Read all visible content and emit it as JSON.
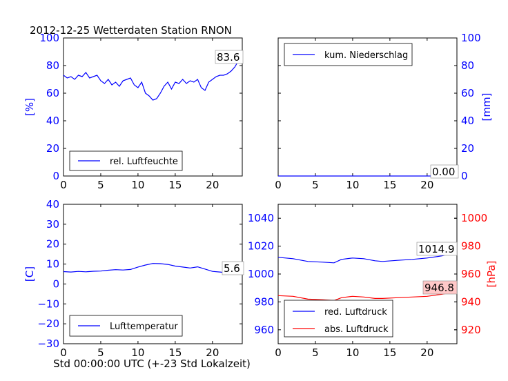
{
  "figure_title": "2012-12-25 Wetterdaten Station RNON",
  "xaxis_caption": "Std 00:00:00 UTC (+-23 Std Lokalzeit)",
  "colors": {
    "blue": "#0000ff",
    "red": "#ff0000",
    "black": "#000000",
    "label_bg_red": "#ffc8c8"
  },
  "chart_data": [
    {
      "type": "line",
      "id": "humidity",
      "xlim": [
        0,
        24
      ],
      "ylim": [
        0,
        100
      ],
      "xticks": [
        0,
        5,
        10,
        15,
        20
      ],
      "yticks": [
        0,
        20,
        40,
        60,
        80,
        100
      ],
      "ylabel": "[%]",
      "ylabel_side": "left",
      "legend_position": "lower-left",
      "series": [
        {
          "name": "rel. Luftfeuchte",
          "color": "#0000ff",
          "points": [
            [
              0,
              73
            ],
            [
              0.5,
              71
            ],
            [
              1,
              72
            ],
            [
              1.5,
              70
            ],
            [
              2,
              73
            ],
            [
              2.5,
              72
            ],
            [
              3,
              75
            ],
            [
              3.5,
              71
            ],
            [
              4,
              72
            ],
            [
              4.5,
              73
            ],
            [
              5,
              69
            ],
            [
              5.5,
              67
            ],
            [
              6,
              70
            ],
            [
              6.5,
              66
            ],
            [
              7,
              68
            ],
            [
              7.5,
              65
            ],
            [
              8,
              69
            ],
            [
              8.5,
              70
            ],
            [
              9,
              71
            ],
            [
              9.5,
              66
            ],
            [
              10,
              64
            ],
            [
              10.5,
              68
            ],
            [
              11,
              60
            ],
            [
              11.5,
              58
            ],
            [
              12,
              55
            ],
            [
              12.5,
              56
            ],
            [
              13,
              60
            ],
            [
              13.5,
              65
            ],
            [
              14,
              68
            ],
            [
              14.5,
              63
            ],
            [
              15,
              68
            ],
            [
              15.5,
              67
            ],
            [
              16,
              70
            ],
            [
              16.5,
              67
            ],
            [
              17,
              69
            ],
            [
              17.5,
              68
            ],
            [
              18,
              70
            ],
            [
              18.5,
              64
            ],
            [
              19,
              62
            ],
            [
              19.5,
              68
            ],
            [
              20,
              70
            ],
            [
              20.5,
              72
            ],
            [
              21,
              73
            ],
            [
              21.5,
              73
            ],
            [
              22,
              74
            ],
            [
              22.5,
              76
            ],
            [
              23,
              79
            ],
            [
              23.5,
              83.6
            ],
            [
              24,
              83.6
            ]
          ]
        }
      ],
      "value_label": "83.6"
    },
    {
      "type": "line",
      "id": "precipitation",
      "xlim": [
        0,
        24
      ],
      "ylim": [
        0,
        100
      ],
      "xticks": [
        0,
        5,
        10,
        15,
        20
      ],
      "yticks": [
        0,
        20,
        40,
        60,
        80,
        100
      ],
      "ylabel": "[mm]",
      "ylabel_side": "right",
      "legend_position": "upper-left",
      "series": [
        {
          "name": "kum. Niederschlag",
          "color": "#0000ff",
          "points": [
            [
              0,
              0
            ],
            [
              24,
              0
            ]
          ]
        }
      ],
      "value_label": "0.00"
    },
    {
      "type": "line",
      "id": "temperature",
      "xlim": [
        0,
        24
      ],
      "ylim": [
        -30,
        40
      ],
      "xticks": [
        0,
        5,
        10,
        15,
        20
      ],
      "yticks": [
        -30,
        -20,
        -10,
        0,
        10,
        20,
        30,
        40
      ],
      "ylabel": "[C]",
      "ylabel_side": "left",
      "legend_position": "lower-left",
      "series": [
        {
          "name": "Lufttemperatur",
          "color": "#0000ff",
          "points": [
            [
              0,
              6.2
            ],
            [
              1,
              6.0
            ],
            [
              2,
              6.3
            ],
            [
              3,
              6.1
            ],
            [
              4,
              6.4
            ],
            [
              5,
              6.5
            ],
            [
              6,
              6.9
            ],
            [
              7,
              7.2
            ],
            [
              8,
              7.0
            ],
            [
              9,
              7.3
            ],
            [
              10,
              8.5
            ],
            [
              11,
              9.5
            ],
            [
              12,
              10.3
            ],
            [
              13,
              10.2
            ],
            [
              14,
              9.8
            ],
            [
              15,
              9.0
            ],
            [
              16,
              8.5
            ],
            [
              17,
              8.0
            ],
            [
              18,
              8.6
            ],
            [
              19,
              7.5
            ],
            [
              20,
              6.3
            ],
            [
              21,
              6.0
            ],
            [
              22,
              5.6
            ],
            [
              23,
              5.5
            ],
            [
              24,
              5.6
            ]
          ]
        }
      ],
      "value_label": "5.6"
    },
    {
      "type": "line",
      "id": "pressure",
      "xlim": [
        0,
        24
      ],
      "ylim": [
        950,
        1050
      ],
      "ylim_right": [
        910,
        1010
      ],
      "xticks": [
        0,
        5,
        10,
        15,
        20
      ],
      "yticks": [
        960,
        980,
        1000,
        1020,
        1040
      ],
      "yticks_right": [
        920,
        940,
        960,
        980,
        1000
      ],
      "ylabel_right": "[hPa]",
      "legend_position": "lower-left",
      "series": [
        {
          "name": "red. Luftdruck",
          "color": "#0000ff",
          "axis": "left",
          "points": [
            [
              0,
              1012
            ],
            [
              2,
              1011
            ],
            [
              4,
              1009
            ],
            [
              6,
              1008.5
            ],
            [
              7.5,
              1008
            ],
            [
              8.5,
              1010.5
            ],
            [
              10,
              1011.5
            ],
            [
              11.5,
              1011
            ],
            [
              13,
              1009.5
            ],
            [
              14,
              1009
            ],
            [
              16,
              1009.8
            ],
            [
              18,
              1010.5
            ],
            [
              20,
              1011.5
            ],
            [
              22,
              1013
            ],
            [
              23,
              1014.5
            ],
            [
              24,
              1014.9
            ]
          ]
        },
        {
          "name": "abs. Luftdruck",
          "color": "#ff0000",
          "axis": "right",
          "points": [
            [
              0,
              944.5
            ],
            [
              2,
              944
            ],
            [
              4,
              942
            ],
            [
              6,
              941.5
            ],
            [
              7.5,
              941
            ],
            [
              8.5,
              943
            ],
            [
              10,
              944
            ],
            [
              11.5,
              943.5
            ],
            [
              13,
              942.5
            ],
            [
              14,
              942.5
            ],
            [
              16,
              943
            ],
            [
              18,
              943.5
            ],
            [
              20,
              944
            ],
            [
              22,
              945.5
            ],
            [
              23,
              946.5
            ],
            [
              24,
              946.8
            ]
          ]
        }
      ],
      "value_label_blue": "1014.9",
      "value_label_red": "946.8"
    }
  ]
}
